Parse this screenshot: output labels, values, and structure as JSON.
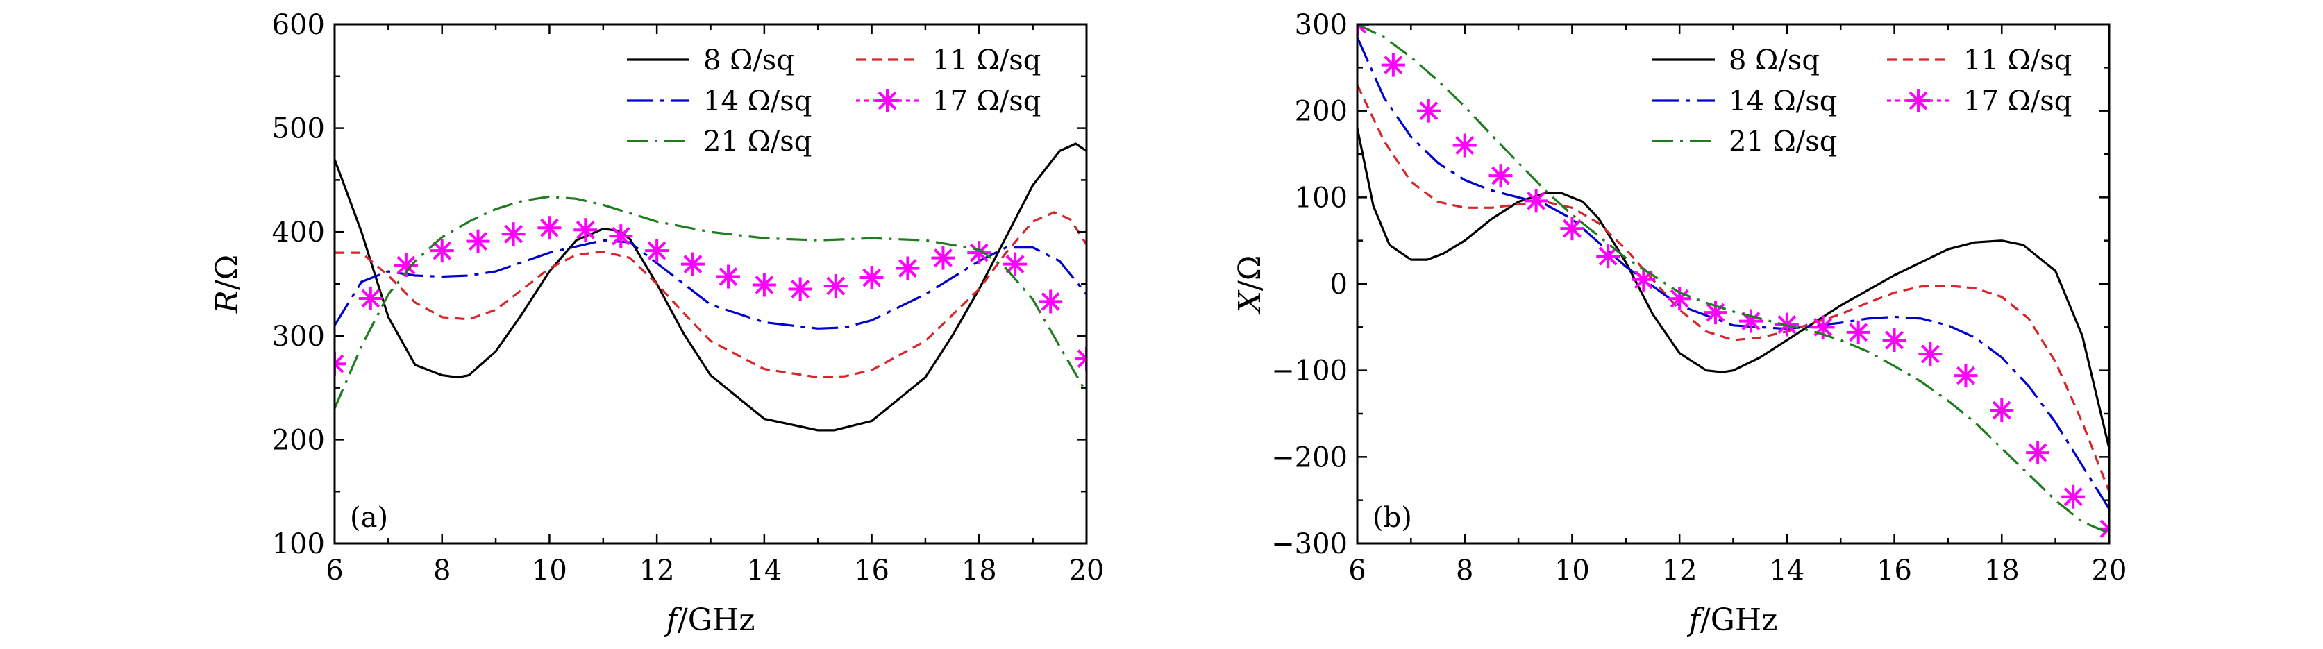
{
  "chart_data": [
    {
      "type": "line",
      "panel_tag": "(a)",
      "xlabel": "f/GHz",
      "ylabel": "R/Ω",
      "xlabel_parts": {
        "var": "f",
        "unit": "/GHz"
      },
      "ylabel_parts": {
        "var": "R",
        "unit": "/Ω"
      },
      "xlim": [
        6,
        20
      ],
      "ylim": [
        100,
        600
      ],
      "x_ticks": [
        6,
        8,
        10,
        12,
        14,
        16,
        18,
        20
      ],
      "y_ticks": [
        100,
        200,
        300,
        400,
        500,
        600
      ],
      "x_tick_labels": [
        "6",
        "8",
        "10",
        "12",
        "14",
        "16",
        "18",
        "20"
      ],
      "y_tick_labels": [
        "100",
        "200",
        "300",
        "400",
        "500",
        "600"
      ],
      "grid": false,
      "legend_position": "top-right",
      "series": [
        {
          "name": "8 Ω/sq",
          "color": "#000000",
          "style": "solid",
          "x": [
            6,
            6.5,
            7,
            7.5,
            8,
            8.3,
            8.5,
            9,
            9.5,
            10,
            10.5,
            11,
            11.3,
            11.5,
            12,
            12.5,
            13,
            14,
            15,
            15.3,
            16,
            17,
            17.5,
            18,
            18.5,
            19,
            19.5,
            19.8,
            20
          ],
          "y": [
            470,
            400,
            318,
            272,
            262,
            260,
            262,
            285,
            322,
            362,
            392,
            403,
            401,
            393,
            350,
            302,
            262,
            220,
            209,
            209,
            218,
            260,
            300,
            345,
            395,
            445,
            478,
            485,
            478
          ]
        },
        {
          "name": "11 Ω/sq",
          "color": "#d62728",
          "style": "dashed",
          "x": [
            6,
            6.5,
            7,
            7.5,
            8,
            8.5,
            9,
            9.5,
            10,
            10.5,
            11,
            11.5,
            12,
            12.5,
            13,
            14,
            15,
            15.5,
            16,
            17,
            18,
            18.5,
            19,
            19.4,
            19.7,
            20
          ],
          "y": [
            380,
            380,
            358,
            332,
            318,
            316,
            325,
            345,
            365,
            378,
            381,
            375,
            350,
            322,
            295,
            268,
            260,
            261,
            267,
            295,
            345,
            380,
            410,
            419,
            412,
            388
          ]
        },
        {
          "name": "14 Ω/sq",
          "color": "#0000cd",
          "style": "dashdot",
          "x": [
            6,
            6.5,
            7,
            7.5,
            8,
            8.5,
            9,
            10,
            11,
            11.5,
            12,
            13,
            14,
            15,
            15.5,
            16,
            17,
            18,
            18.5,
            19,
            19.5,
            20
          ],
          "y": [
            310,
            352,
            362,
            358,
            357,
            358,
            362,
            380,
            392,
            390,
            370,
            330,
            313,
            307,
            308,
            315,
            340,
            372,
            385,
            385,
            372,
            340
          ]
        },
        {
          "name": "17 Ω/sq",
          "color": "#ff00ff",
          "style": "star",
          "x": [
            6,
            6.67,
            7.33,
            8,
            8.67,
            9.33,
            10,
            10.67,
            11.33,
            12,
            12.67,
            13.33,
            14,
            14.67,
            15.33,
            16,
            16.67,
            17.33,
            18,
            18.67,
            19.33,
            20
          ],
          "y": [
            273,
            336,
            368,
            382,
            391,
            398,
            404,
            402,
            396,
            382,
            369,
            357,
            349,
            345,
            348,
            356,
            365,
            375,
            380,
            369,
            333,
            278
          ]
        },
        {
          "name": "21 Ω/sq",
          "color": "#1e7d1e",
          "style": "dashdot2",
          "x": [
            6,
            6.5,
            7,
            7.5,
            8,
            8.5,
            9,
            9.5,
            10,
            10.5,
            11,
            12,
            13,
            14,
            15,
            16,
            17,
            18,
            18.5,
            19,
            19.5,
            20
          ],
          "y": [
            230,
            290,
            340,
            372,
            395,
            410,
            422,
            430,
            434,
            432,
            426,
            410,
            400,
            394,
            392,
            394,
            392,
            383,
            365,
            335,
            290,
            245
          ]
        }
      ]
    },
    {
      "type": "line",
      "panel_tag": "(b)",
      "xlabel": "f/GHz",
      "ylabel": "X/Ω",
      "xlabel_parts": {
        "var": "f",
        "unit": "/GHz"
      },
      "ylabel_parts": {
        "var": "X",
        "unit": "/Ω"
      },
      "xlim": [
        6,
        20
      ],
      "ylim": [
        -300,
        300
      ],
      "x_ticks": [
        6,
        8,
        10,
        12,
        14,
        16,
        18,
        20
      ],
      "y_ticks": [
        -300,
        -200,
        -100,
        0,
        100,
        200,
        300
      ],
      "x_tick_labels": [
        "6",
        "8",
        "10",
        "12",
        "14",
        "16",
        "18",
        "20"
      ],
      "y_tick_labels": [
        "−300",
        "−200",
        "−100",
        "0",
        "100",
        "200",
        "300"
      ],
      "grid": false,
      "legend_position": "top-right",
      "series": [
        {
          "name": "8 Ω/sq",
          "color": "#000000",
          "style": "solid",
          "x": [
            6,
            6.3,
            6.6,
            7,
            7.3,
            7.6,
            8,
            8.5,
            9,
            9.5,
            9.8,
            10.2,
            10.5,
            11,
            11.5,
            12,
            12.5,
            12.8,
            13,
            13.5,
            14,
            15,
            16,
            17,
            17.5,
            18,
            18.4,
            19,
            19.5,
            20
          ],
          "y": [
            180,
            90,
            45,
            28,
            28,
            35,
            50,
            75,
            95,
            105,
            105,
            95,
            75,
            25,
            -35,
            -80,
            -100,
            -102,
            -100,
            -85,
            -65,
            -25,
            10,
            40,
            48,
            50,
            45,
            15,
            -60,
            -190
          ]
        },
        {
          "name": "11 Ω/sq",
          "color": "#d62728",
          "style": "dashed",
          "x": [
            6,
            6.5,
            7,
            7.5,
            8,
            8.5,
            9,
            9.5,
            10,
            10.5,
            11,
            11.5,
            12,
            12.5,
            13,
            13.5,
            14,
            14.5,
            15,
            15.5,
            16,
            16.5,
            17,
            17.5,
            18,
            18.5,
            19,
            19.5,
            20
          ],
          "y": [
            230,
            165,
            118,
            95,
            88,
            88,
            92,
            95,
            88,
            70,
            40,
            5,
            -30,
            -55,
            -65,
            -62,
            -55,
            -45,
            -35,
            -22,
            -10,
            -3,
            -2,
            -5,
            -15,
            -40,
            -90,
            -160,
            -240
          ]
        },
        {
          "name": "14 Ω/sq",
          "color": "#0000cd",
          "style": "dashdot",
          "x": [
            6,
            6.5,
            7,
            7.5,
            8,
            8.5,
            9,
            9.5,
            10,
            11,
            12,
            13,
            14,
            15,
            15.5,
            16,
            16.5,
            17,
            17.5,
            18,
            18.5,
            19,
            19.5,
            20
          ],
          "y": [
            285,
            215,
            170,
            140,
            120,
            108,
            100,
            92,
            75,
            20,
            -25,
            -48,
            -52,
            -45,
            -40,
            -38,
            -40,
            -48,
            -62,
            -85,
            -118,
            -160,
            -210,
            -260
          ]
        },
        {
          "name": "17 Ω/sq",
          "color": "#ff00ff",
          "style": "star",
          "x": [
            6,
            6.67,
            7.33,
            8,
            8.67,
            9.33,
            10,
            10.67,
            11.33,
            12,
            12.67,
            13.33,
            14,
            14.67,
            15.33,
            16,
            16.67,
            17.33,
            18,
            18.67,
            19.33,
            20
          ],
          "y": [
            300,
            253,
            200,
            160,
            125,
            96,
            64,
            32,
            5,
            -17,
            -33,
            -43,
            -47,
            -50,
            -56,
            -65,
            -81,
            -106,
            -146,
            -195,
            -246,
            -283
          ]
        },
        {
          "name": "21 Ω/sq",
          "color": "#1e7d1e",
          "style": "dashdot2",
          "x": [
            6,
            6.5,
            7,
            7.5,
            8,
            8.5,
            9,
            9.5,
            10,
            10.5,
            11,
            11.5,
            12,
            12.5,
            13,
            13.5,
            14,
            14.5,
            15,
            15.5,
            16,
            16.5,
            17,
            17.5,
            18,
            18.5,
            19,
            19.5,
            20
          ],
          "y": [
            300,
            285,
            262,
            235,
            205,
            172,
            140,
            108,
            80,
            55,
            30,
            10,
            -10,
            -22,
            -32,
            -40,
            -48,
            -55,
            -65,
            -78,
            -95,
            -113,
            -135,
            -160,
            -190,
            -220,
            -250,
            -275,
            -288
          ]
        }
      ]
    }
  ]
}
